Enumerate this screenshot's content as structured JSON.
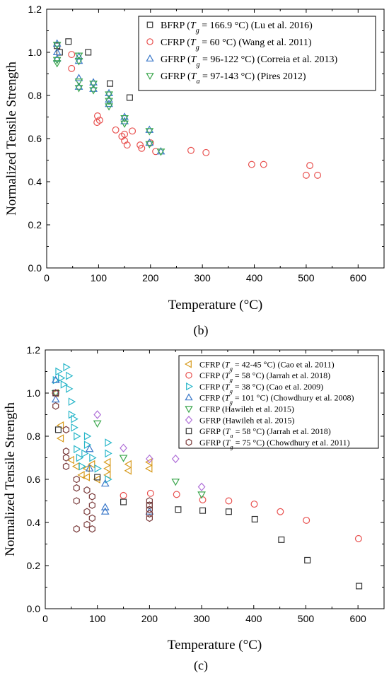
{
  "chart_data": [
    {
      "type": "scatter",
      "panel_label": "(b)",
      "xlabel": "Temperature (°C)",
      "ylabel": "Normalized Tensile Strength",
      "xlim": [
        0,
        650
      ],
      "ylim": [
        0,
        1.2
      ],
      "x_ticks": [
        "0",
        "100",
        "200",
        "300",
        "400",
        "500",
        "600"
      ],
      "y_ticks": [
        "0.0",
        "0.2",
        "0.4",
        "0.6",
        "0.8",
        "1.0",
        "1.2"
      ],
      "grid": false,
      "legend_position": "top-right",
      "series": [
        {
          "name": "BFRP (Tg = 166.9 °C) (Lu et al. 2016)",
          "legend": {
            "pre": "BFRP (",
            "t": "T",
            "sub": "g",
            "post": " = 166.9 °C) (Lu et al. 2016)"
          },
          "marker": "square",
          "color": "#333333",
          "points": [
            [
              20,
              1.03
            ],
            [
              25,
              1.0
            ],
            [
              42,
              1.05
            ],
            [
              80,
              1.0
            ],
            [
              122,
              0.855
            ],
            [
              160,
              0.79
            ]
          ]
        },
        {
          "name": "CFRP (Tg = 60 °C) (Wang et al. 2011)",
          "legend": {
            "pre": "CFRP (",
            "t": "T",
            "sub": "g",
            "post": " = 60 °C) (Wang et al. 2011)"
          },
          "marker": "circle",
          "color": "#e8514f",
          "points": [
            [
              48,
              0.99
            ],
            [
              48,
              0.925
            ],
            [
              97,
              0.675
            ],
            [
              98,
              0.705
            ],
            [
              102,
              0.685
            ],
            [
              133,
              0.64
            ],
            [
              145,
              0.61
            ],
            [
              150,
              0.62
            ],
            [
              150,
              0.59
            ],
            [
              155,
              0.57
            ],
            [
              165,
              0.635
            ],
            [
              180,
              0.57
            ],
            [
              183,
              0.555
            ],
            [
              200,
              0.58
            ],
            [
              210,
              0.54
            ],
            [
              278,
              0.545
            ],
            [
              307,
              0.535
            ],
            [
              395,
              0.48
            ],
            [
              418,
              0.48
            ],
            [
              500,
              0.43
            ],
            [
              507,
              0.475
            ],
            [
              522,
              0.43
            ]
          ]
        },
        {
          "name": "GFRP (Tg = 96-122 °C) (Correia et al. 2013)",
          "legend": {
            "pre": "GFRP (",
            "t": "T",
            "sub": "g",
            "post": " = 96-122 °C) (Correia et al. 2013)"
          },
          "marker": "triangle-up",
          "color": "#3a78c9",
          "points": [
            [
              20,
              1.04
            ],
            [
              20,
              0.97
            ],
            [
              20,
              1.0
            ],
            [
              62,
              0.98
            ],
            [
              62,
              0.96
            ],
            [
              62,
              0.88
            ],
            [
              62,
              0.84
            ],
            [
              90,
              0.86
            ],
            [
              90,
              0.83
            ],
            [
              120,
              0.81
            ],
            [
              120,
              0.78
            ],
            [
              120,
              0.76
            ],
            [
              150,
              0.7
            ],
            [
              150,
              0.68
            ],
            [
              198,
              0.64
            ],
            [
              198,
              0.58
            ],
            [
              220,
              0.54
            ]
          ]
        },
        {
          "name": "GFRP (Ta = 97-143 °C) (Pires 2012)",
          "legend": {
            "pre": "GFRP (",
            "t": "T",
            "sub": "a",
            "post": " = 97-143 °C) (Pires 2012)"
          },
          "marker": "triangle-down",
          "color": "#3aa64c",
          "points": [
            [
              20,
              1.035
            ],
            [
              20,
              0.965
            ],
            [
              20,
              0.95
            ],
            [
              62,
              0.985
            ],
            [
              62,
              0.96
            ],
            [
              62,
              0.865
            ],
            [
              62,
              0.835
            ],
            [
              90,
              0.855
            ],
            [
              90,
              0.825
            ],
            [
              120,
              0.805
            ],
            [
              120,
              0.775
            ],
            [
              120,
              0.75
            ],
            [
              150,
              0.695
            ],
            [
              150,
              0.67
            ],
            [
              198,
              0.635
            ],
            [
              198,
              0.575
            ],
            [
              220,
              0.54
            ]
          ]
        }
      ]
    },
    {
      "type": "scatter",
      "panel_label": "(c)",
      "xlabel": "Temperature (°C)",
      "ylabel": "Normalized Tensile Strength",
      "xlim": [
        0,
        650
      ],
      "ylim": [
        0,
        1.2
      ],
      "x_ticks": [
        "0",
        "100",
        "200",
        "300",
        "400",
        "500",
        "600"
      ],
      "y_ticks": [
        "0.0",
        "0.2",
        "0.4",
        "0.6",
        "0.8",
        "1.0",
        "1.2"
      ],
      "grid": false,
      "legend_position": "top-right",
      "series": [
        {
          "name": "CFRP (Tg = 42-45 °C) (Cao et al. 2011)",
          "legend": {
            "pre": "CFRP (",
            "t": "T",
            "sub": "g",
            "post": " = 42-45 °C) (Cao et al. 2011)"
          },
          "marker": "triangle-left",
          "color": "#d79a1c",
          "points": [
            [
              20,
              1.0
            ],
            [
              30,
              0.85
            ],
            [
              30,
              0.79
            ],
            [
              50,
              0.69
            ],
            [
              60,
              0.66
            ],
            [
              70,
              0.62
            ],
            [
              80,
              0.65
            ],
            [
              80,
              0.61
            ],
            [
              90,
              0.67
            ],
            [
              100,
              0.6
            ],
            [
              120,
              0.68
            ],
            [
              120,
              0.65
            ],
            [
              120,
              0.62
            ],
            [
              160,
              0.67
            ],
            [
              160,
              0.64
            ],
            [
              200,
              0.68
            ],
            [
              200,
              0.65
            ]
          ]
        },
        {
          "name": "CFRP (Tg = 58 °C) (Jarrah et al. 2018)",
          "legend": {
            "pre": "CFRP (",
            "t": "T",
            "sub": "g",
            "post": " = 58 °C) (Jarrah et al. 2018)"
          },
          "marker": "circle",
          "color": "#e8514f",
          "points": [
            [
              150,
              0.525
            ],
            [
              202,
              0.535
            ],
            [
              252,
              0.53
            ],
            [
              302,
              0.505
            ],
            [
              352,
              0.5
            ],
            [
              401,
              0.485
            ],
            [
              451,
              0.45
            ],
            [
              501,
              0.41
            ],
            [
              601,
              0.325
            ]
          ]
        },
        {
          "name": "CFRP (Tg = 38 °C) (Cao et al. 2009)",
          "legend": {
            "pre": "CFRP (",
            "t": "T",
            "sub": "g",
            "post": " = 38 °C) (Cao et al. 2009)"
          },
          "marker": "triangle-right",
          "color": "#27b6c9",
          "points": [
            [
              20,
              1.06
            ],
            [
              25,
              1.1
            ],
            [
              30,
              1.07
            ],
            [
              35,
              1.04
            ],
            [
              40,
              1.12
            ],
            [
              45,
              1.08
            ],
            [
              45,
              1.02
            ],
            [
              50,
              0.96
            ],
            [
              50,
              0.9
            ],
            [
              55,
              0.88
            ],
            [
              55,
              0.84
            ],
            [
              60,
              0.8
            ],
            [
              60,
              0.74
            ],
            [
              65,
              0.7
            ],
            [
              70,
              0.66
            ],
            [
              75,
              0.72
            ],
            [
              80,
              0.8
            ],
            [
              80,
              0.76
            ],
            [
              90,
              0.7
            ],
            [
              100,
              0.65
            ],
            [
              120,
              0.77
            ],
            [
              120,
              0.72
            ],
            [
              120,
              0.6
            ]
          ]
        },
        {
          "name": "CFRP (Tg = 101 °C) (Chowdhury et al. 2008)",
          "legend": {
            "pre": "CFRP (",
            "t": "T",
            "sub": "g",
            "post": " = 101 °C) (Chowdhury et al. 2008)"
          },
          "marker": "triangle-up",
          "color": "#3a78c9",
          "points": [
            [
              20,
              1.06
            ],
            [
              20,
              0.97
            ],
            [
              85,
              0.74
            ],
            [
              85,
              0.65
            ],
            [
              115,
              0.58
            ],
            [
              115,
              0.47
            ],
            [
              115,
              0.45
            ],
            [
              200,
              0.45
            ]
          ]
        },
        {
          "name": "CFRP (Hawileh et al. 2015)",
          "legend": {
            "pre": "CFRP (Hawileh et al. 2015)",
            "t": "",
            "sub": "",
            "post": ""
          },
          "marker": "triangle-down",
          "color": "#3aa64c",
          "points": [
            [
              20,
              1.0
            ],
            [
              100,
              0.86
            ],
            [
              150,
              0.7
            ],
            [
              250,
              0.59
            ],
            [
              300,
              0.53
            ]
          ]
        },
        {
          "name": "GFRP (Hawileh et al. 2015)",
          "legend": {
            "pre": "GFRP (Hawileh et al. 2015)",
            "t": "",
            "sub": "",
            "post": ""
          },
          "marker": "diamond",
          "color": "#b070d8",
          "points": [
            [
              20,
              1.0
            ],
            [
              100,
              0.9
            ],
            [
              150,
              0.745
            ],
            [
              200,
              0.695
            ],
            [
              250,
              0.695
            ],
            [
              300,
              0.565
            ]
          ]
        },
        {
          "name": "GFRP (Ta = 58 °C) (Jarrah et al. 2018)",
          "legend": {
            "pre": "GFRP (",
            "t": "T",
            "sub": "a",
            "post": " = 58 °C) (Jarrah et al. 2018)"
          },
          "marker": "square",
          "color": "#333333",
          "points": [
            [
              20,
              1.0
            ],
            [
              25,
              0.83
            ],
            [
              100,
              0.61
            ],
            [
              150,
              0.495
            ],
            [
              200,
              0.48
            ],
            [
              255,
              0.46
            ],
            [
              302,
              0.455
            ],
            [
              352,
              0.45
            ],
            [
              402,
              0.415
            ],
            [
              453,
              0.32
            ],
            [
              503,
              0.225
            ],
            [
              602,
              0.105
            ]
          ]
        },
        {
          "name": "GFRP (Tg = 75 °C) (Chowdhury et al. 2011)",
          "legend": {
            "pre": "GFRP (",
            "t": "T",
            "sub": "g",
            "post": " = 75 °C) (Chowdhury et al. 2011)"
          },
          "marker": "hexagon",
          "color": "#7a3b3b",
          "points": [
            [
              20,
              1.0
            ],
            [
              20,
              0.94
            ],
            [
              40,
              0.83
            ],
            [
              40,
              0.73
            ],
            [
              40,
              0.7
            ],
            [
              40,
              0.66
            ],
            [
              60,
              0.6
            ],
            [
              60,
              0.56
            ],
            [
              60,
              0.5
            ],
            [
              60,
              0.37
            ],
            [
              80,
              0.55
            ],
            [
              80,
              0.45
            ],
            [
              80,
              0.39
            ],
            [
              90,
              0.52
            ],
            [
              90,
              0.48
            ],
            [
              90,
              0.42
            ],
            [
              90,
              0.37
            ],
            [
              200,
              0.5
            ],
            [
              200,
              0.48
            ],
            [
              200,
              0.46
            ],
            [
              200,
              0.44
            ],
            [
              200,
              0.42
            ]
          ]
        }
      ]
    }
  ]
}
